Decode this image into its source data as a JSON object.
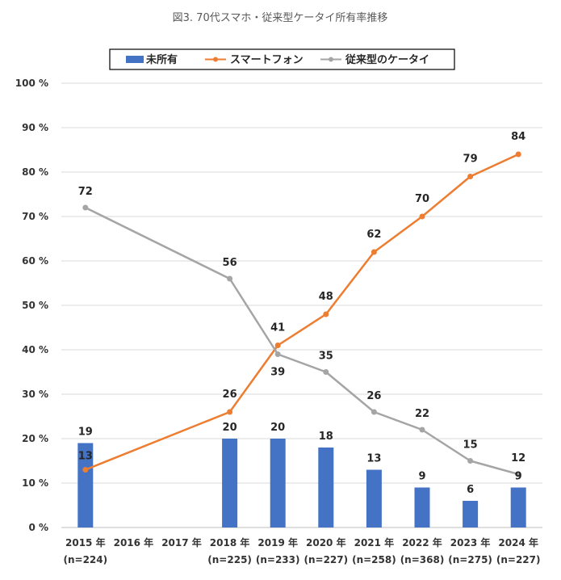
{
  "chart_data": {
    "type": "bar",
    "title": "図3. 70代スマホ・従来型ケータイ所有率推移",
    "categories": [
      "2015 年",
      "2016 年",
      "2017 年",
      "2018 年",
      "2019 年",
      "2020 年",
      "2021 年",
      "2022 年",
      "2023 年",
      "2024 年"
    ],
    "category_notes": [
      "(n=224)",
      "",
      "",
      "(n=225)",
      "(n=233)",
      "(n=227)",
      "(n=258)",
      "(n=368)",
      "(n=275)",
      "(n=227)"
    ],
    "ylim": [
      0,
      100
    ],
    "yticks": [
      "0 %",
      "10 %",
      "20 %",
      "30 %",
      "40 %",
      "50 %",
      "60 %",
      "70 %",
      "80 %",
      "90 %",
      "100 %"
    ],
    "ytick_values": [
      0,
      10,
      20,
      30,
      40,
      50,
      60,
      70,
      80,
      90,
      100
    ],
    "grid": true,
    "legend_position": "top",
    "series": [
      {
        "name": "未所有",
        "type": "bar",
        "color": "#4472C4",
        "values": [
          19,
          null,
          null,
          20,
          20,
          18,
          13,
          9,
          6,
          9
        ]
      },
      {
        "name": "スマートフォン",
        "type": "line",
        "color": "#ED7D31",
        "values": [
          13,
          null,
          null,
          26,
          41,
          48,
          62,
          70,
          79,
          84
        ]
      },
      {
        "name": "従来型のケータイ",
        "type": "line",
        "color": "#A5A5A5",
        "values": [
          72,
          null,
          null,
          56,
          39,
          35,
          26,
          22,
          15,
          12
        ]
      }
    ]
  }
}
